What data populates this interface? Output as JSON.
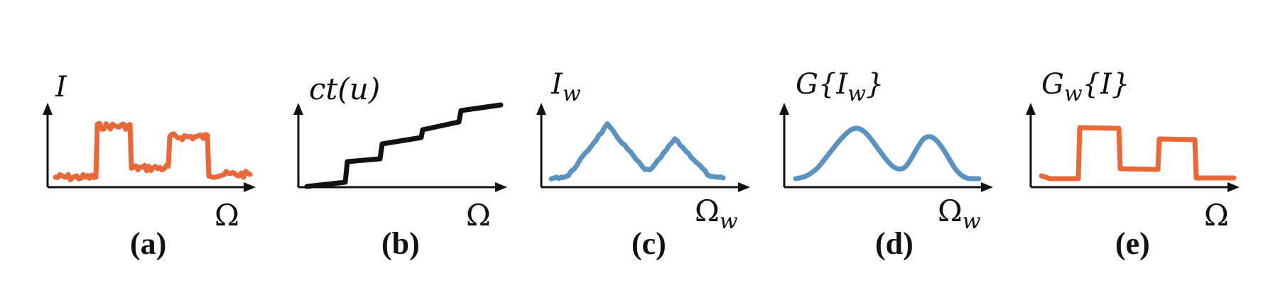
{
  "colors": {
    "orange": "#e8683a",
    "black": "#111111",
    "blue": "#5b93c0"
  },
  "panels": [
    {
      "id": "a",
      "ylabel_main": "I",
      "ylabel_sub": "",
      "ylabel_prefix": "",
      "ylabel_suffix": "",
      "xlabel_main": "Ω",
      "xlabel_sub": "",
      "caption": "(a)",
      "curve_color": "orange",
      "shape": "noisy-steps"
    },
    {
      "id": "b",
      "ylabel_main": "ct(u)",
      "ylabel_sub": "",
      "ylabel_prefix": "",
      "ylabel_suffix": "",
      "xlabel_main": "Ω",
      "xlabel_sub": "",
      "caption": "(b)",
      "curve_color": "black",
      "shape": "staircase"
    },
    {
      "id": "c",
      "ylabel_main": "I",
      "ylabel_sub": "w",
      "ylabel_prefix": "",
      "ylabel_suffix": "",
      "xlabel_main": "Ω",
      "xlabel_sub": "w",
      "caption": "(c)",
      "curve_color": "blue",
      "shape": "noisy-peaks"
    },
    {
      "id": "d",
      "ylabel_main": "I",
      "ylabel_sub": "w",
      "ylabel_prefix": "G{",
      "ylabel_suffix": "}",
      "xlabel_main": "Ω",
      "xlabel_sub": "w",
      "caption": "(d)",
      "curve_color": "blue",
      "shape": "smooth-peaks"
    },
    {
      "id": "e",
      "ylabel_main": "G",
      "ylabel_sub": "w",
      "ylabel_prefix": "",
      "ylabel_suffix": "{I}",
      "xlabel_main": "Ω",
      "xlabel_sub": "",
      "caption": "(e)",
      "curve_color": "orange",
      "shape": "clean-steps"
    }
  ]
}
